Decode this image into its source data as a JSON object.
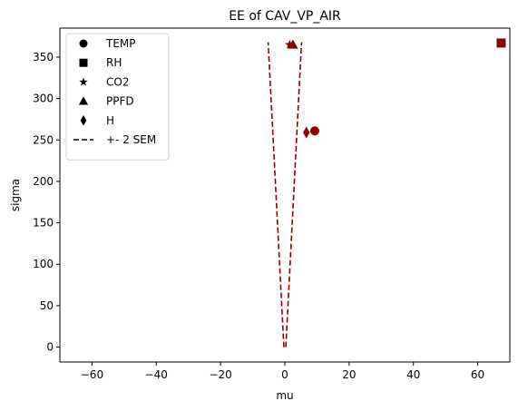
{
  "chart_data": {
    "type": "scatter",
    "title": "EE of CAV_VP_AIR",
    "xlabel": "mu",
    "ylabel": "sigma",
    "xlim": [
      -70,
      70
    ],
    "ylim": [
      -18,
      385
    ],
    "xticks": [
      -60,
      -40,
      -20,
      0,
      20,
      40,
      60
    ],
    "yticks": [
      0,
      50,
      100,
      150,
      200,
      250,
      300,
      350
    ],
    "grid": false,
    "legend_placement": "top-left",
    "marker_color": "#8b0000",
    "legend_color": "#000000",
    "series": [
      {
        "name": "TEMP",
        "marker": "circle",
        "points": [
          {
            "x": 9.3,
            "y": 261
          }
        ]
      },
      {
        "name": "RH",
        "marker": "square",
        "points": [
          {
            "x": 67.3,
            "y": 367
          }
        ]
      },
      {
        "name": "CO2",
        "marker": "star",
        "points": [
          {
            "x": 1.5,
            "y": 365
          }
        ]
      },
      {
        "name": "PPFD",
        "marker": "triangle",
        "points": [
          {
            "x": 2.5,
            "y": 365
          }
        ]
      },
      {
        "name": "H",
        "marker": "diamond",
        "points": [
          {
            "x": 6.7,
            "y": 259
          }
        ]
      }
    ],
    "sem_lines": {
      "name": "+- 2 SEM",
      "style": "dashed",
      "segments": [
        [
          {
            "x": -0.3,
            "y": 0
          },
          {
            "x": -5.2,
            "y": 368
          }
        ],
        [
          {
            "x": 0.3,
            "y": 0
          },
          {
            "x": 5.2,
            "y": 368
          }
        ]
      ]
    }
  }
}
